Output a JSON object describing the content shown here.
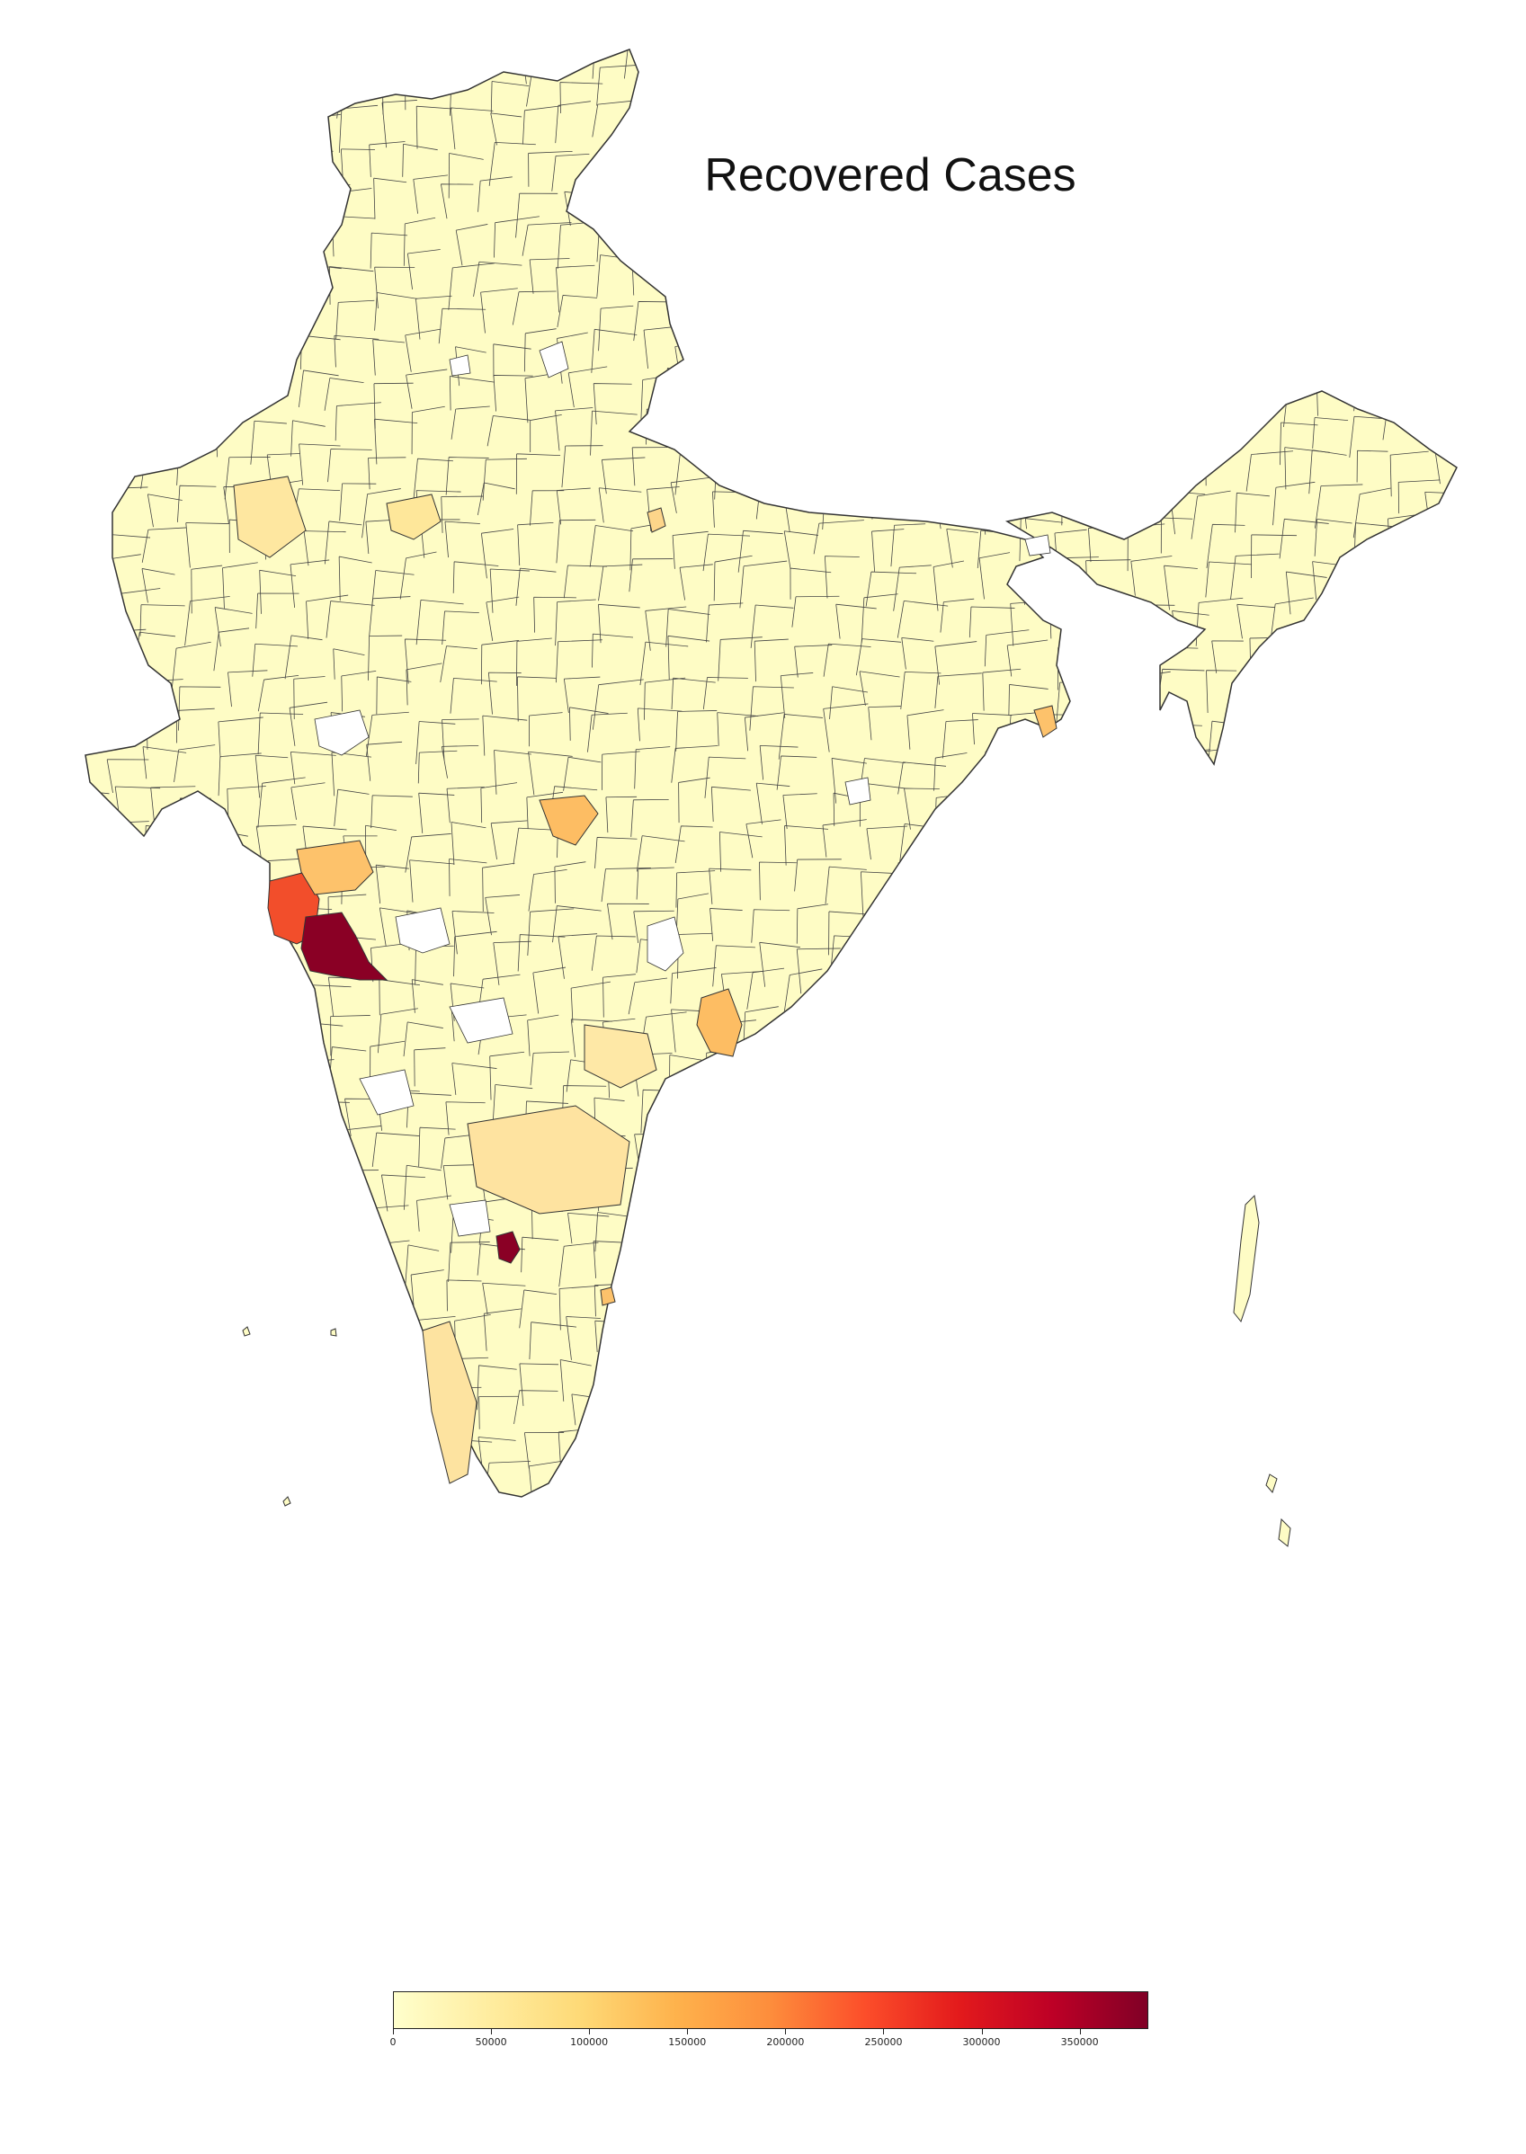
{
  "title": "Recovered Cases",
  "colorbar": {
    "min": 0,
    "max": 385000,
    "colormap": "YlOrRd",
    "ticks": [
      {
        "value": 0,
        "label": "0"
      },
      {
        "value": 50000,
        "label": "50000"
      },
      {
        "value": 100000,
        "label": "100000"
      },
      {
        "value": 150000,
        "label": "150000"
      },
      {
        "value": 200000,
        "label": "200000"
      },
      {
        "value": 250000,
        "label": "250000"
      },
      {
        "value": 300000,
        "label": "300000"
      },
      {
        "value": 350000,
        "label": "350000"
      }
    ],
    "stops": [
      "#ffffcc",
      "#ffeda0",
      "#fed976",
      "#feb24c",
      "#fd8d3c",
      "#fc4e2a",
      "#e31a1c",
      "#bd0026",
      "#800026"
    ]
  },
  "colors": {
    "default_region": "#fefcc5",
    "border": "#333333",
    "no_data": "#ffffff"
  }
}
